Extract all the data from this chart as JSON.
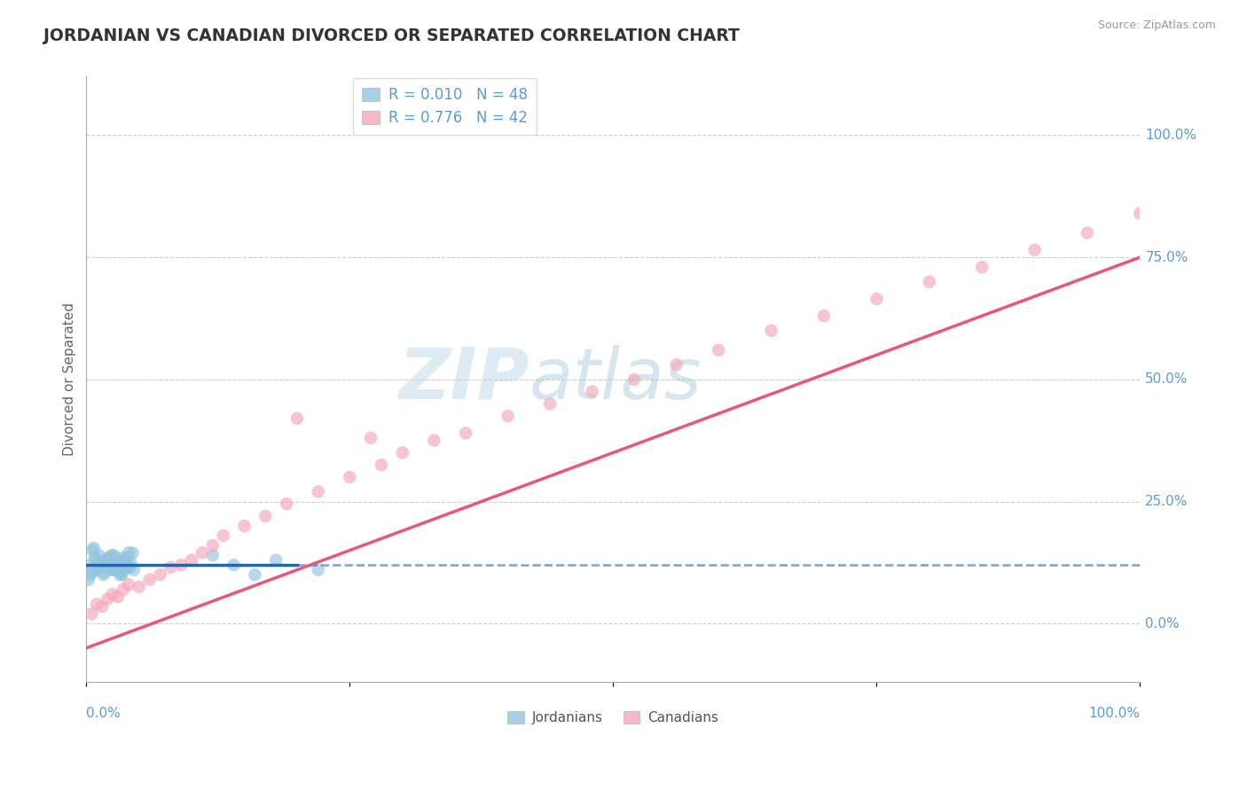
{
  "title": "JORDANIAN VS CANADIAN DIVORCED OR SEPARATED CORRELATION CHART",
  "source_text": "Source: ZipAtlas.com",
  "ylabel": "Divorced or Separated",
  "blue_color": "#92c5de",
  "pink_color": "#f4a7b9",
  "blue_line_color": "#2166ac",
  "pink_line_color": "#e8567a",
  "blue_r": 0.01,
  "pink_r": 0.776,
  "blue_n": 48,
  "pink_n": 42,
  "watermark_zip": "ZIP",
  "watermark_atlas": "atlas",
  "ytick_labels": [
    "0.0%",
    "25.0%",
    "50.0%",
    "75.0%",
    "100.0%"
  ],
  "ytick_values": [
    0.0,
    25.0,
    50.0,
    75.0,
    100.0
  ],
  "xlim": [
    0.0,
    100.0
  ],
  "ylim": [
    -12.0,
    112.0
  ],
  "background_color": "#ffffff",
  "grid_color": "#c8c8c8",
  "blue_line_y_intercept": 12.0,
  "blue_line_slope": 0.0,
  "pink_line_y_intercept": -5.0,
  "pink_line_slope": 0.8,
  "blue_scatter_x": [
    0.3,
    0.5,
    0.8,
    1.0,
    1.2,
    1.5,
    1.8,
    2.0,
    2.2,
    2.5,
    2.8,
    3.0,
    3.2,
    3.5,
    3.8,
    4.0,
    4.2,
    4.5,
    0.4,
    0.6,
    0.9,
    1.1,
    1.4,
    1.7,
    2.1,
    2.4,
    2.7,
    3.1,
    3.4,
    3.7,
    4.1,
    4.4,
    0.2,
    0.7,
    1.3,
    1.6,
    1.9,
    2.3,
    2.6,
    2.9,
    3.3,
    3.6,
    3.9,
    14.0,
    18.0,
    22.0,
    12.0,
    16.0
  ],
  "blue_scatter_y": [
    12.0,
    10.5,
    13.5,
    11.0,
    14.0,
    12.5,
    11.5,
    13.0,
    12.0,
    11.0,
    13.5,
    12.0,
    10.0,
    11.5,
    13.0,
    14.5,
    12.5,
    11.0,
    10.0,
    15.0,
    13.0,
    11.5,
    12.5,
    10.5,
    13.5,
    14.0,
    11.0,
    12.0,
    10.0,
    13.0,
    11.5,
    14.5,
    9.0,
    15.5,
    12.0,
    10.0,
    13.0,
    11.0,
    14.0,
    12.5,
    10.5,
    13.5,
    11.5,
    12.0,
    13.0,
    11.0,
    14.0,
    10.0
  ],
  "pink_scatter_x": [
    0.5,
    1.0,
    1.5,
    2.0,
    2.5,
    3.0,
    3.5,
    4.0,
    5.0,
    6.0,
    7.0,
    8.0,
    9.0,
    10.0,
    11.0,
    12.0,
    13.0,
    15.0,
    17.0,
    19.0,
    22.0,
    25.0,
    28.0,
    30.0,
    33.0,
    36.0,
    40.0,
    44.0,
    48.0,
    52.0,
    56.0,
    60.0,
    65.0,
    70.0,
    75.0,
    80.0,
    85.0,
    90.0,
    95.0,
    100.0,
    20.0,
    27.0
  ],
  "pink_scatter_y": [
    2.0,
    4.0,
    3.5,
    5.0,
    6.0,
    5.5,
    7.0,
    8.0,
    7.5,
    9.0,
    10.0,
    11.5,
    12.0,
    13.0,
    14.5,
    16.0,
    18.0,
    20.0,
    22.0,
    24.5,
    27.0,
    30.0,
    32.5,
    35.0,
    37.5,
    39.0,
    42.5,
    45.0,
    47.5,
    50.0,
    53.0,
    56.0,
    60.0,
    63.0,
    66.5,
    70.0,
    73.0,
    76.5,
    80.0,
    84.0,
    42.0,
    38.0
  ]
}
